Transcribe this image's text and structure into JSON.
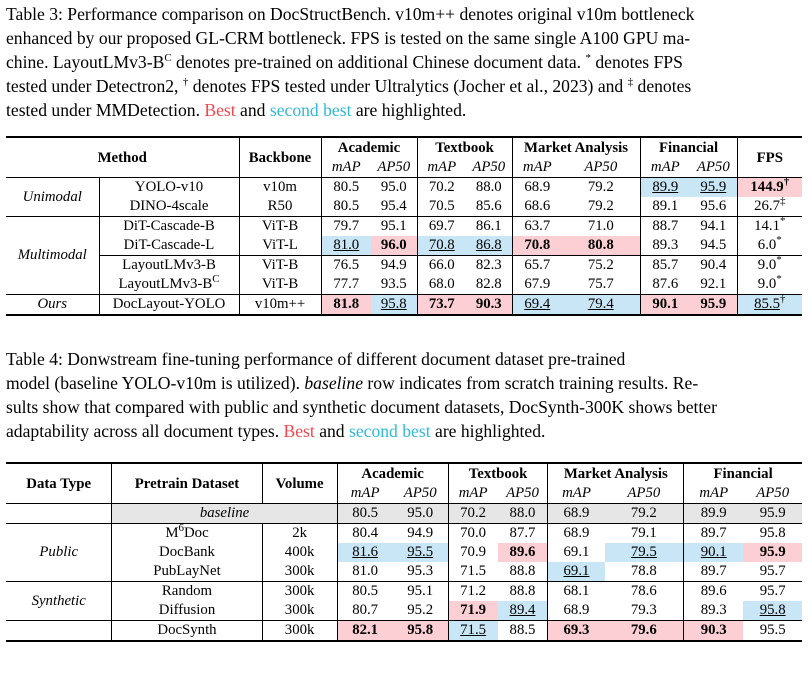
{
  "table3": {
    "caption": {
      "lines": [
        "Table 3: Performance comparison on DocStructBench. v10m++ denotes original v10m bottleneck",
        "enhanced by our proposed GL-CRM bottleneck. FPS is tested on the same single A100 GPU ma-",
        "chine. LayoutLMv3-B",
        "C",
        " denotes pre-trained on additional Chinese document data. ",
        "*",
        " denotes FPS",
        "tested under Detectron2, ",
        "†",
        " denotes FPS tested under Ultralytics (Jocher et al., 2023) and ",
        "‡",
        " denotes",
        "tested under MMDetection. ",
        "Best",
        " and ",
        "second best",
        " are highlighted."
      ]
    },
    "headers": {
      "method": "Method",
      "backbone": "Backbone",
      "groups": [
        "Academic",
        "Textbook",
        "Market Analysis",
        "Financial"
      ],
      "fps": "FPS",
      "sub": [
        "mAP",
        "AP50"
      ]
    },
    "rows": [
      {
        "group": "Unimodal",
        "method": "YOLO-v10",
        "sup": "",
        "backbone": "v10m",
        "vals": [
          "80.5",
          "95.0",
          "70.2",
          "88.0",
          "68.9",
          "79.2",
          "89.9",
          "95.9"
        ],
        "fps": "144.9",
        "fps_mark": "†"
      },
      {
        "group": "",
        "method": "DINO-4scale",
        "sup": "",
        "backbone": "R50",
        "vals": [
          "80.5",
          "95.4",
          "70.5",
          "85.6",
          "68.6",
          "79.2",
          "89.1",
          "95.6"
        ],
        "fps": "26.7",
        "fps_mark": "‡"
      },
      {
        "group": "Multimodal",
        "method": "DiT-Cascade-B",
        "sup": "",
        "backbone": "ViT-B",
        "vals": [
          "79.7",
          "95.1",
          "69.7",
          "86.1",
          "63.7",
          "71.0",
          "88.7",
          "94.1"
        ],
        "fps": "14.1",
        "fps_mark": "*"
      },
      {
        "group": "",
        "method": "DiT-Cascade-L",
        "sup": "",
        "backbone": "ViT-L",
        "vals": [
          "81.0",
          "96.0",
          "70.8",
          "86.8",
          "70.8",
          "80.8",
          "89.3",
          "94.5"
        ],
        "fps": "6.0",
        "fps_mark": "*"
      },
      {
        "group": "",
        "method": "LayoutLMv3-B",
        "sup": "",
        "backbone": "ViT-B",
        "vals": [
          "76.5",
          "94.9",
          "66.0",
          "82.3",
          "65.7",
          "75.2",
          "85.7",
          "90.4"
        ],
        "fps": "9.0",
        "fps_mark": "*"
      },
      {
        "group": "",
        "method": "LayoutLMv3-B",
        "sup": "C",
        "backbone": "ViT-B",
        "vals": [
          "77.7",
          "93.5",
          "68.0",
          "82.8",
          "67.9",
          "75.7",
          "87.6",
          "92.1"
        ],
        "fps": "9.0",
        "fps_mark": "*"
      },
      {
        "group": "Ours",
        "method": "DocLayout-YOLO",
        "sup": "",
        "backbone": "v10m++",
        "vals": [
          "81.8",
          "95.8",
          "73.7",
          "90.3",
          "69.4",
          "79.4",
          "90.1",
          "95.9"
        ],
        "fps": "85.5",
        "fps_mark": "†"
      }
    ]
  },
  "table4": {
    "caption": {
      "lines": [
        "Table 4:  Donwstream fine-tuning performance of different document dataset pre-trained",
        "model (baseline YOLO-v10m is utilized). ",
        "baseline",
        " row indicates from scratch training results. Re-",
        "sults show that compared with public and synthetic document datasets, DocSynth-300K shows better",
        "adaptability across all document types. ",
        "Best",
        " and ",
        "second best",
        " are highlighted."
      ]
    },
    "headers": {
      "data_type": "Data Type",
      "pretrain": "Pretrain Dataset",
      "volume": "Volume",
      "groups": [
        "Academic",
        "Textbook",
        "Market Analysis",
        "Financial"
      ],
      "sub": [
        "mAP",
        "AP50"
      ]
    },
    "baseline": {
      "label": "baseline",
      "vals": [
        "80.5",
        "95.0",
        "70.2",
        "88.0",
        "68.9",
        "79.2",
        "89.9",
        "95.9"
      ]
    },
    "rows": [
      {
        "group": "",
        "name": "M",
        "name_sup": "6",
        "name_tail": "Doc",
        "volume": "2k",
        "vals": [
          "80.4",
          "94.9",
          "70.0",
          "87.7",
          "68.9",
          "79.1",
          "89.7",
          "95.8"
        ]
      },
      {
        "group": "Public",
        "name": "DocBank",
        "name_sup": "",
        "name_tail": "",
        "volume": "400k",
        "vals": [
          "81.6",
          "95.5",
          "70.9",
          "89.6",
          "69.1",
          "79.5",
          "90.1",
          "95.9"
        ]
      },
      {
        "group": "",
        "name": "PubLayNet",
        "name_sup": "",
        "name_tail": "",
        "volume": "300k",
        "vals": [
          "81.0",
          "95.3",
          "71.5",
          "88.8",
          "69.1",
          "78.8",
          "89.7",
          "95.7"
        ]
      },
      {
        "group": "",
        "name": "Random",
        "name_sup": "",
        "name_tail": "",
        "volume": "300k",
        "vals": [
          "80.5",
          "95.1",
          "71.2",
          "88.8",
          "68.1",
          "78.6",
          "89.6",
          "95.7"
        ]
      },
      {
        "group": "Synthetic",
        "name": "Diffusion",
        "name_sup": "",
        "name_tail": "",
        "volume": "300k",
        "vals": [
          "80.7",
          "95.2",
          "71.9",
          "89.4",
          "68.9",
          "79.3",
          "89.3",
          "95.8"
        ]
      },
      {
        "group": "",
        "name": "DocSynth",
        "name_sup": "",
        "name_tail": "",
        "volume": "300k",
        "vals": [
          "82.1",
          "95.8",
          "71.5",
          "88.5",
          "69.3",
          "79.6",
          "90.3",
          "95.5"
        ]
      }
    ]
  },
  "colors": {
    "best": "#fbcfd3",
    "second": "#c8e6f5",
    "best_text": "#f0474f",
    "second_text": "#30b8d8"
  }
}
